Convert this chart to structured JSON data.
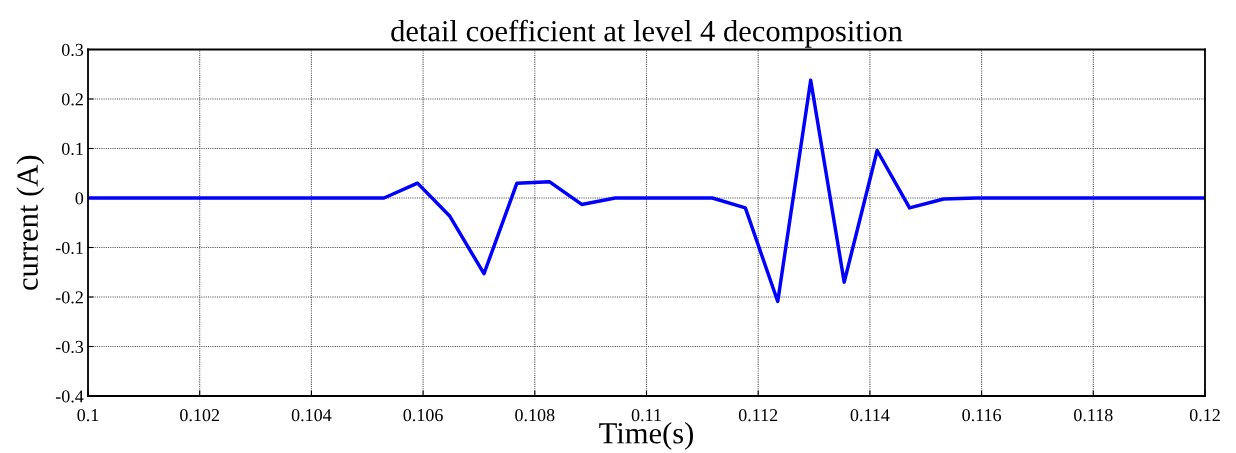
{
  "chart_data": {
    "type": "line",
    "title": "detail coefficient at level 4 decomposition",
    "xlabel": "Time(s)",
    "ylabel": "current (A)",
    "x": [
      0.1,
      0.1053,
      0.1059,
      0.10648,
      0.10709,
      0.10768,
      0.10826,
      0.10884,
      0.10944,
      0.11118,
      0.11177,
      0.11235,
      0.11294,
      0.11354,
      0.11413,
      0.11471,
      0.11532,
      0.1159,
      0.12
    ],
    "series": [
      {
        "color": "#0000ff",
        "values": [
          0,
          0,
          0.03,
          -0.037,
          -0.153,
          0.03,
          0.033,
          -0.013,
          0,
          0,
          -0.02,
          -0.209,
          0.238,
          -0.17,
          0.096,
          -0.02,
          -0.002,
          0,
          0
        ]
      }
    ],
    "xlim": [
      0.1,
      0.12
    ],
    "xticks": [
      0.1,
      0.102,
      0.104,
      0.106,
      0.108,
      0.11,
      0.112,
      0.114,
      0.116,
      0.118,
      0.12
    ],
    "ylim": [
      -0.4,
      0.3
    ],
    "yticks": [
      -0.4,
      -0.3,
      -0.2,
      -0.1,
      0,
      0.1,
      0.2,
      0.3
    ],
    "grid": true,
    "marker": "none",
    "line_style": "solid",
    "legend": false
  }
}
